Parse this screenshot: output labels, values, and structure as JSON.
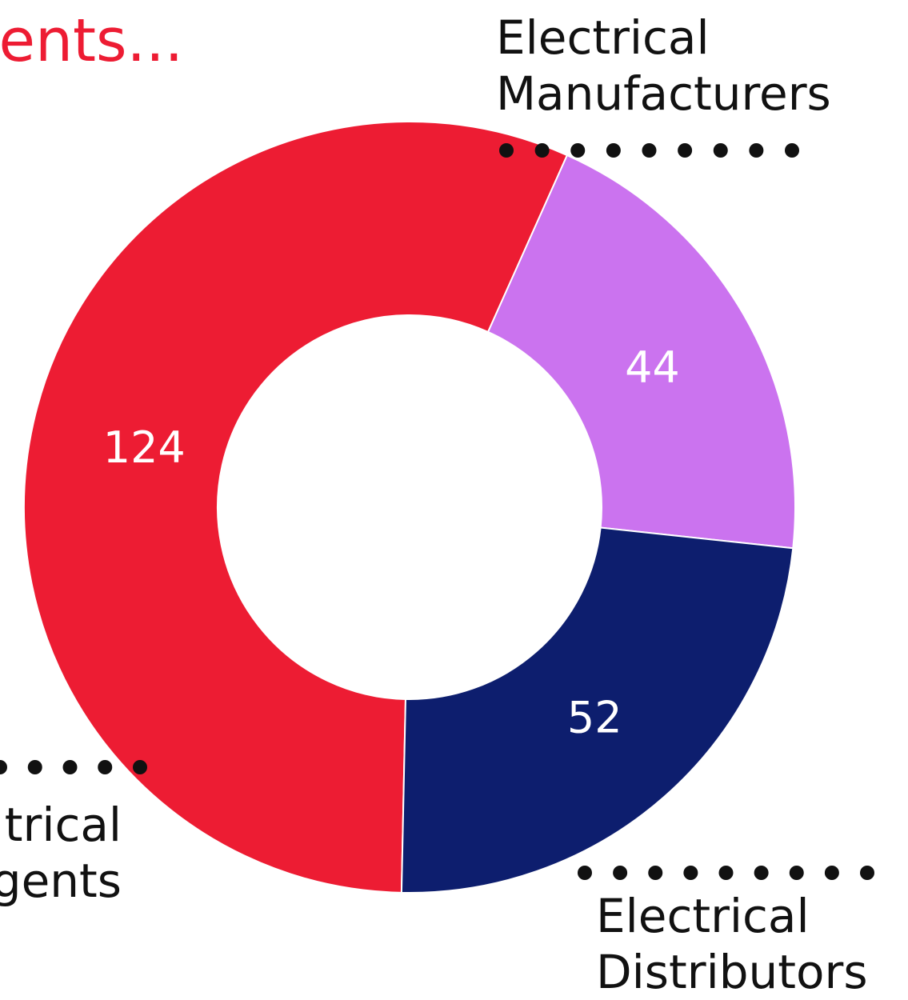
{
  "header": {
    "title_fragment": "sents..."
  },
  "chart_data": {
    "type": "pie",
    "donut": true,
    "categories": [
      "Electrical Manufacturers",
      "Electrical Distributors",
      "Electrical Agents"
    ],
    "values": [
      124,
      44,
      52
    ],
    "colors": [
      "#ed1c33",
      "#cb73ef",
      "#0d1e6e"
    ],
    "data_labels": [
      "124",
      "44",
      "52"
    ],
    "category_label_lines": [
      [
        "Electrical",
        "Manufacturers"
      ],
      [
        "Electrical",
        "Distributors"
      ],
      [
        "trical",
        "gents"
      ]
    ]
  }
}
